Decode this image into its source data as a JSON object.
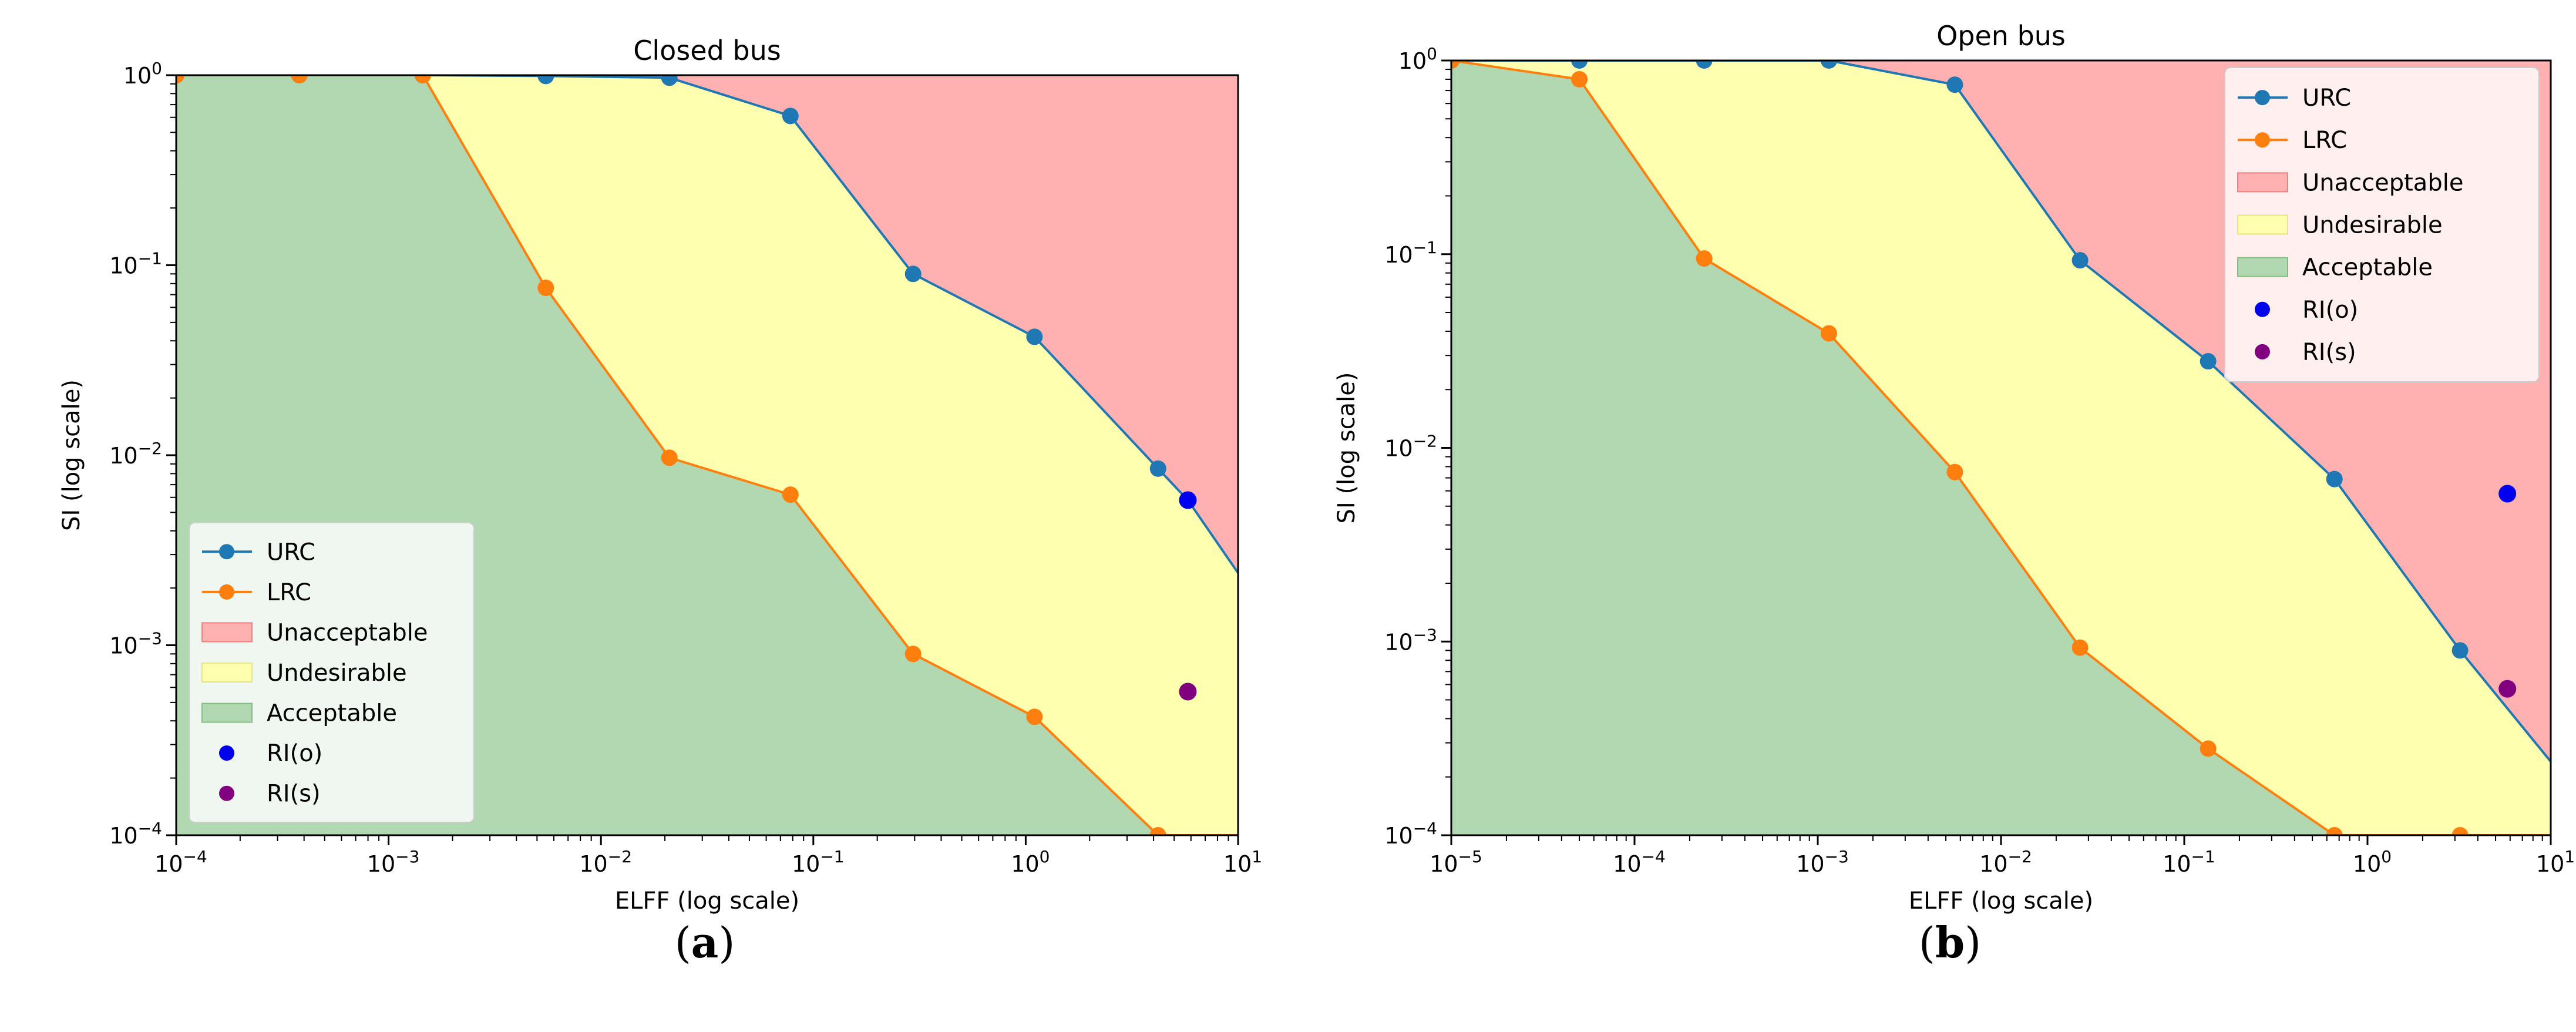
{
  "colors": {
    "urc": "#1f77b4",
    "lrc": "#ff7f0e",
    "unacceptable": "#ffb0b0",
    "undesirable": "#ffffb0",
    "acceptable": "#b2d8b2",
    "ri_o": "#0000ee",
    "ri_s": "#800080"
  },
  "captions": {
    "a_open": "(",
    "a_letter": "a",
    "a_close": ")",
    "b_open": "(",
    "b_letter": "b",
    "b_close": ")"
  },
  "chart_data": [
    {
      "type": "line",
      "title": "Closed bus",
      "xlabel": "ELFF (log scale)",
      "ylabel": "SI (log scale)",
      "xscale": "log",
      "yscale": "log",
      "xlim": [
        0.0001,
        10
      ],
      "ylim": [
        0.0001,
        1
      ],
      "x_ticks": [
        {
          "value": 0.0001,
          "base": "10",
          "exp": "−4"
        },
        {
          "value": 0.001,
          "base": "10",
          "exp": "−3"
        },
        {
          "value": 0.01,
          "base": "10",
          "exp": "−2"
        },
        {
          "value": 0.1,
          "base": "10",
          "exp": "−1"
        },
        {
          "value": 1,
          "base": "10",
          "exp": "0"
        },
        {
          "value": 10,
          "base": "10",
          "exp": "1"
        }
      ],
      "y_ticks": [
        {
          "value": 1,
          "base": "10",
          "exp": "0"
        },
        {
          "value": 0.1,
          "base": "10",
          "exp": "−1"
        },
        {
          "value": 0.01,
          "base": "10",
          "exp": "−2"
        },
        {
          "value": 0.001,
          "base": "10",
          "exp": "−3"
        },
        {
          "value": 0.0001,
          "base": "10",
          "exp": "−4"
        }
      ],
      "legend_position": "lower-left",
      "legend": [
        "URC",
        "LRC",
        "Unacceptable",
        "Undesirable",
        "Acceptable",
        "RI(o)",
        "RI(s)"
      ],
      "series": [
        {
          "name": "URC",
          "x": [
            0.0001,
            0.00038,
            0.00145,
            0.0055,
            0.021,
            0.078,
            0.295,
            1.1,
            4.2,
            5.8,
            10
          ],
          "y": [
            1,
            1,
            1,
            0.99,
            0.97,
            0.61,
            0.09,
            0.042,
            0.0085,
            0.0058,
            0.0024
          ]
        },
        {
          "name": "LRC",
          "x": [
            0.0001,
            0.00038,
            0.00145,
            0.0055,
            0.021,
            0.078,
            0.295,
            1.1,
            4.2,
            10
          ],
          "y": [
            1,
            1,
            1,
            0.076,
            0.0097,
            0.0062,
            0.0009,
            0.00042,
            0.0001,
            0.0001
          ]
        }
      ],
      "urc_markers": 10,
      "lrc_markers": 9,
      "points": [
        {
          "name": "RI(o)",
          "x": 5.8,
          "y": 0.0058
        },
        {
          "name": "RI(s)",
          "x": 5.8,
          "y": 0.00057
        }
      ]
    },
    {
      "type": "line",
      "title": "Open bus",
      "xlabel": "ELFF (log scale)",
      "ylabel": "SI (log scale)",
      "xscale": "log",
      "yscale": "log",
      "xlim": [
        1e-05,
        10
      ],
      "ylim": [
        0.0001,
        1
      ],
      "x_ticks": [
        {
          "value": 1e-05,
          "base": "10",
          "exp": "−5"
        },
        {
          "value": 0.0001,
          "base": "10",
          "exp": "−4"
        },
        {
          "value": 0.001,
          "base": "10",
          "exp": "−3"
        },
        {
          "value": 0.01,
          "base": "10",
          "exp": "−2"
        },
        {
          "value": 0.1,
          "base": "10",
          "exp": "−1"
        },
        {
          "value": 1,
          "base": "10",
          "exp": "0"
        },
        {
          "value": 10,
          "base": "10",
          "exp": "1"
        }
      ],
      "y_ticks": [
        {
          "value": 1,
          "base": "10",
          "exp": "0"
        },
        {
          "value": 0.1,
          "base": "10",
          "exp": "−1"
        },
        {
          "value": 0.01,
          "base": "10",
          "exp": "−2"
        },
        {
          "value": 0.001,
          "base": "10",
          "exp": "−3"
        },
        {
          "value": 0.0001,
          "base": "10",
          "exp": "−4"
        }
      ],
      "legend_position": "upper-right",
      "legend": [
        "URC",
        "LRC",
        "Unacceptable",
        "Undesirable",
        "Acceptable",
        "RI(o)",
        "RI(s)"
      ],
      "series": [
        {
          "name": "URC",
          "x": [
            1e-05,
            5e-05,
            0.00024,
            0.00115,
            0.0056,
            0.027,
            0.135,
            0.66,
            3.2,
            10
          ],
          "y": [
            1,
            1,
            1,
            1,
            0.75,
            0.093,
            0.028,
            0.0069,
            0.0009,
            0.00024
          ]
        },
        {
          "name": "LRC",
          "x": [
            1e-05,
            5e-05,
            0.00024,
            0.00115,
            0.0056,
            0.027,
            0.135,
            0.66,
            3.2,
            10
          ],
          "y": [
            1,
            0.8,
            0.095,
            0.039,
            0.0075,
            0.00093,
            0.00028,
            0.0001,
            0.0001,
            0.0001
          ]
        }
      ],
      "urc_markers": 9,
      "lrc_markers": 9,
      "points": [
        {
          "name": "RI(o)",
          "x": 5.8,
          "y": 0.0058
        },
        {
          "name": "RI(s)",
          "x": 5.8,
          "y": 0.00057
        }
      ]
    }
  ]
}
